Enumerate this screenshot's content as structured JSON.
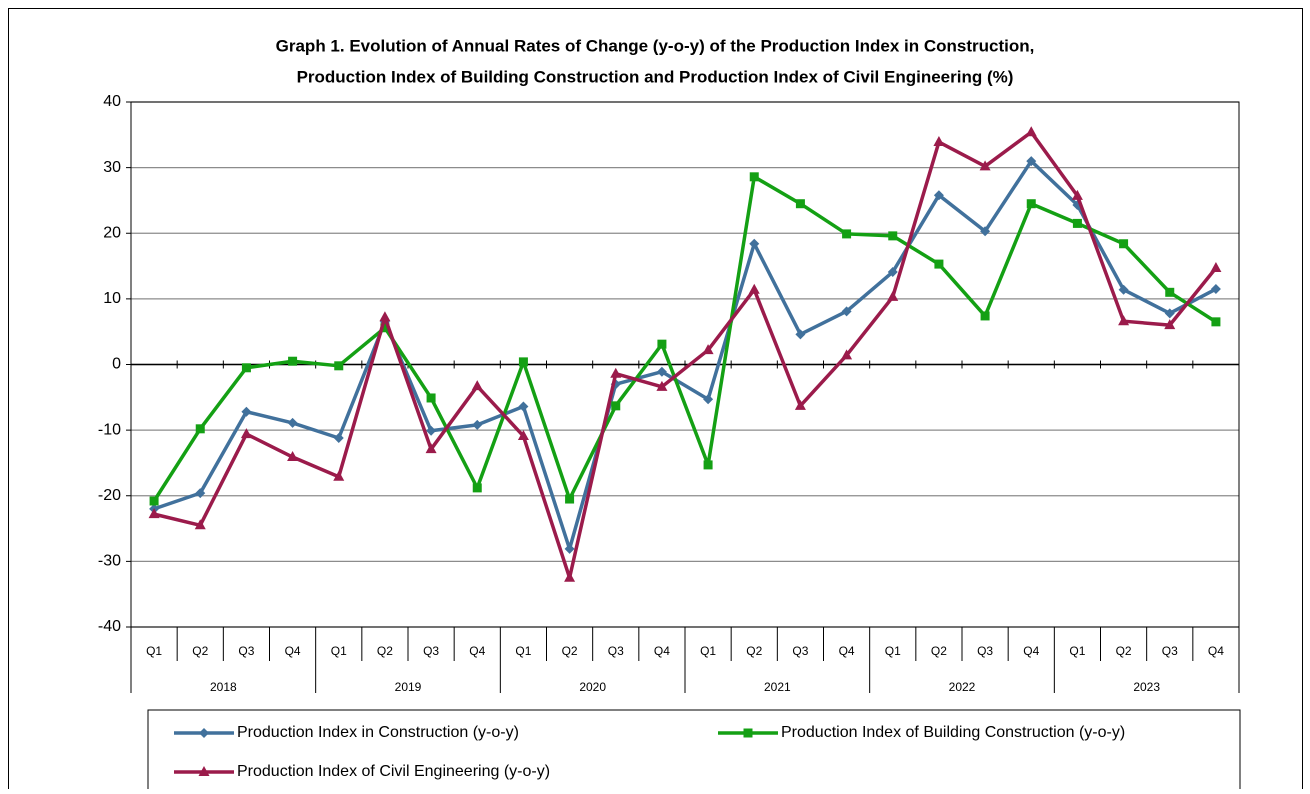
{
  "chart_data": {
    "type": "line",
    "title": [
      "Graph 1. Evolution of Annual Rates of Change (y-o-y) of the Production Index in Construction,",
      "Production Index of Building Construction and Production Index of Civil Engineering (%)"
    ],
    "categories": [
      "Q1",
      "Q2",
      "Q3",
      "Q4",
      "Q1",
      "Q2",
      "Q3",
      "Q4",
      "Q1",
      "Q2",
      "Q3",
      "Q4",
      "Q1",
      "Q2",
      "Q3",
      "Q4",
      "Q1",
      "Q2",
      "Q3",
      "Q4",
      "Q1",
      "Q2",
      "Q3",
      "Q4"
    ],
    "years": [
      "2018",
      "2019",
      "2020",
      "2021",
      "2022",
      "2023"
    ],
    "ylim": [
      -40,
      40
    ],
    "yticks": [
      -40,
      -30,
      -20,
      -10,
      0,
      10,
      20,
      30,
      40
    ],
    "grid": true,
    "legend": "bottom",
    "series": [
      {
        "name": "Production Index in Construction (y-o-y)",
        "color": "#41719c",
        "marker": "diamond",
        "values": [
          -22.0,
          -19.6,
          -7.2,
          -8.9,
          -11.2,
          6.5,
          -10.1,
          -9.2,
          -6.4,
          -28.1,
          -3.0,
          -1.1,
          -5.3,
          18.4,
          4.6,
          8.1,
          14.1,
          25.8,
          20.3,
          31.0,
          24.3,
          11.4,
          7.8,
          11.5
        ]
      },
      {
        "name": "Production Index of Building Construction (y-o-y)",
        "color": "#14a014",
        "marker": "square",
        "values": [
          -20.8,
          -9.8,
          -0.5,
          0.5,
          -0.2,
          5.6,
          -5.1,
          -18.8,
          0.4,
          -20.5,
          -6.3,
          3.1,
          -15.3,
          28.6,
          24.5,
          19.9,
          19.6,
          15.3,
          7.4,
          24.5,
          21.5,
          18.4,
          11.0,
          6.5
        ]
      },
      {
        "name": "Production Index of Civil Engineering (y-o-y)",
        "color": "#9b1b4b",
        "marker": "triangle",
        "values": [
          -22.8,
          -24.5,
          -10.6,
          -14.1,
          -17.1,
          7.2,
          -12.9,
          -3.3,
          -10.9,
          -32.5,
          -1.4,
          -3.4,
          2.2,
          11.4,
          -6.3,
          1.4,
          10.3,
          33.9,
          30.2,
          35.4,
          25.7,
          6.6,
          6.0,
          14.7
        ]
      }
    ]
  }
}
